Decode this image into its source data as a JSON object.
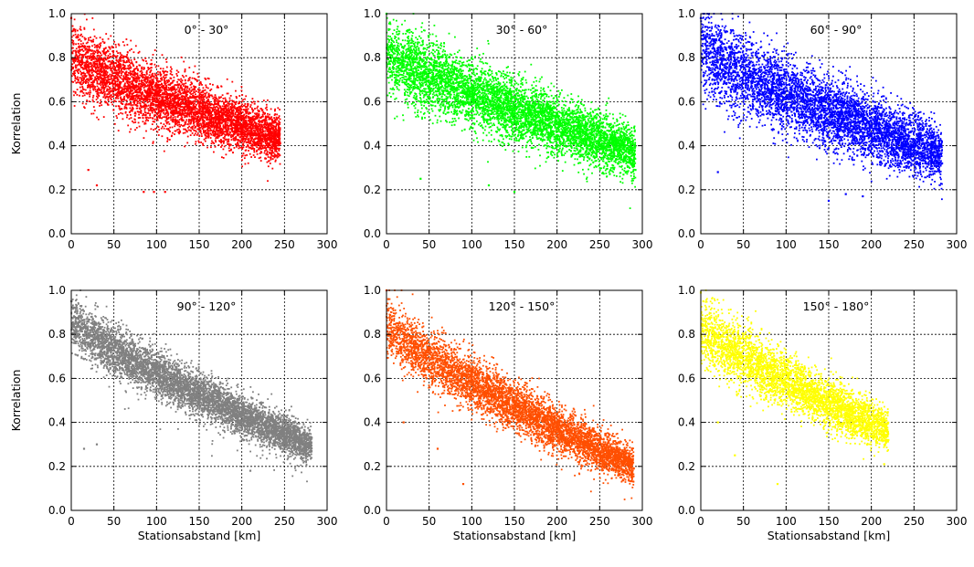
{
  "chart_data": {
    "type": "scatter",
    "grid": true,
    "xlim": [
      0,
      300
    ],
    "ylim": [
      0.0,
      1.0
    ],
    "x_ticks": [
      "0",
      "50",
      "100",
      "150",
      "200",
      "250",
      "300"
    ],
    "y_ticks": [
      "0.0",
      "0.2",
      "0.4",
      "0.6",
      "0.8",
      "1.0"
    ],
    "ylabel": "Korrelation",
    "xlabel": "Stationsabstand [km]",
    "panels": [
      {
        "title": "0° - 30°",
        "color": "#ff0000",
        "xmax": 245,
        "r0": 0.8,
        "r1": 0.43,
        "spread": 0.065,
        "n": 5200,
        "extremes": [
          [
            0,
            0.98
          ],
          [
            3,
            0.93
          ],
          [
            85,
            0.19
          ],
          [
            97,
            0.19
          ],
          [
            110,
            0.19
          ],
          [
            30,
            0.22
          ],
          [
            20,
            0.29
          ],
          [
            245,
            0.41
          ]
        ]
      },
      {
        "title": "30° - 60°",
        "color": "#00ff00",
        "xmax": 292,
        "r0": 0.82,
        "r1": 0.37,
        "spread": 0.07,
        "n": 6000,
        "extremes": [
          [
            0,
            1.0
          ],
          [
            4,
            0.96
          ],
          [
            150,
            0.19
          ],
          [
            120,
            0.22
          ],
          [
            40,
            0.25
          ],
          [
            290,
            0.33
          ],
          [
            292,
            0.29
          ]
        ]
      },
      {
        "title": "60° - 90°",
        "color": "#0000ff",
        "xmax": 283,
        "r0": 0.83,
        "r1": 0.36,
        "spread": 0.08,
        "n": 5500,
        "extremes": [
          [
            0,
            0.98
          ],
          [
            5,
            0.94
          ],
          [
            20,
            0.28
          ],
          [
            150,
            0.15
          ],
          [
            170,
            0.18
          ],
          [
            190,
            0.17
          ],
          [
            283,
            0.32
          ]
        ]
      },
      {
        "title": "90° - 120°",
        "color": "#808080",
        "xmax": 282,
        "r0": 0.86,
        "r1": 0.29,
        "spread": 0.05,
        "n": 6000,
        "extremes": [
          [
            0,
            0.95
          ],
          [
            3,
            0.92
          ],
          [
            15,
            0.28
          ],
          [
            30,
            0.3
          ],
          [
            210,
            0.18
          ],
          [
            280,
            0.27
          ],
          [
            282,
            0.33
          ]
        ]
      },
      {
        "title": "120° - 150°",
        "color": "#ff4f00",
        "xmax": 290,
        "r0": 0.84,
        "r1": 0.2,
        "spread": 0.055,
        "n": 5500,
        "extremes": [
          [
            0,
            1.0
          ],
          [
            2,
            0.96
          ],
          [
            20,
            0.4
          ],
          [
            60,
            0.28
          ],
          [
            90,
            0.12
          ],
          [
            290,
            0.19
          ],
          [
            285,
            0.22
          ]
        ]
      },
      {
        "title": "150° - 180°",
        "color": "#ffff00",
        "xmax": 220,
        "r0": 0.83,
        "r1": 0.36,
        "spread": 0.06,
        "n": 4000,
        "extremes": [
          [
            0,
            0.99
          ],
          [
            3,
            0.95
          ],
          [
            20,
            0.4
          ],
          [
            40,
            0.25
          ],
          [
            90,
            0.12
          ],
          [
            215,
            0.21
          ],
          [
            220,
            0.32
          ]
        ]
      }
    ]
  }
}
